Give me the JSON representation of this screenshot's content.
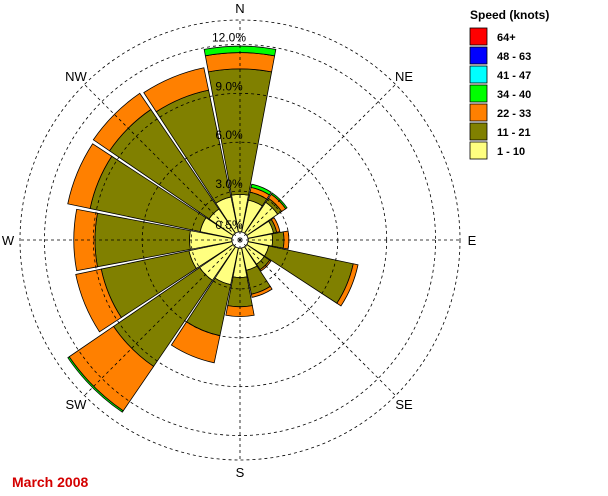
{
  "chart_data": {
    "type": "wind-rose",
    "title": "March 2008",
    "legend_title": "Speed (knots)",
    "legend_placement": "top-right",
    "directions": [
      "N",
      "NNE",
      "NE",
      "ENE",
      "E",
      "ESE",
      "SE",
      "SSE",
      "S",
      "SSW",
      "SW",
      "WSW",
      "W",
      "WNW",
      "NW",
      "NNW"
    ],
    "direction_labels": [
      "N",
      "NE",
      "E",
      "SE",
      "S",
      "SW",
      "W",
      "NW"
    ],
    "speed_bins": [
      {
        "label": "1 - 10",
        "color": "#ffff80"
      },
      {
        "label": "11 - 21",
        "color": "#808000"
      },
      {
        "label": "22 - 33",
        "color": "#ff8000"
      },
      {
        "label": "34 - 40",
        "color": "#00ff00"
      },
      {
        "label": "41 - 47",
        "color": "#00ffff"
      },
      {
        "label": "48 - 63",
        "color": "#0000ff"
      },
      {
        "label": "64+",
        "color": "#ff0000"
      }
    ],
    "ring_labels": [
      "0.5%",
      "3.0%",
      "6.0%",
      "9.0%",
      "12.0%"
    ],
    "ring_values": [
      0.5,
      3.0,
      6.0,
      9.0,
      12.0
    ],
    "rmax": 13.5,
    "calm_percent": 0.5,
    "series": [
      {
        "name": "1 - 10",
        "values": [
          2.3,
          2.0,
          2.3,
          1.6,
          1.5,
          1.3,
          1.3,
          1.4,
          1.8,
          2.3,
          2.5,
          2.7,
          2.6,
          2.0,
          1.8,
          2.2
        ]
      },
      {
        "name": "11 - 21",
        "values": [
          7.7,
          0.5,
          0.3,
          0.2,
          0.7,
          5.3,
          0.4,
          1.5,
          1.8,
          3.2,
          6.4,
          5.5,
          5.8,
          6.9,
          7.4,
          6.7
        ]
      },
      {
        "name": "22 - 33",
        "values": [
          1.0,
          0.3,
          0.3,
          0.2,
          0.3,
          0.3,
          0.1,
          0.2,
          0.6,
          1.7,
          3.3,
          1.6,
          1.3,
          1.4,
          1.2,
          1.4
        ]
      },
      {
        "name": "34 - 40",
        "values": [
          0.4,
          0.2,
          0.1,
          0.0,
          0.0,
          0.0,
          0.0,
          0.0,
          0.0,
          0.0,
          0.1,
          0.0,
          0.0,
          0.0,
          0.0,
          0.0
        ]
      },
      {
        "name": "41 - 47",
        "values": [
          0,
          0,
          0,
          0,
          0,
          0,
          0,
          0,
          0,
          0,
          0,
          0,
          0,
          0,
          0,
          0
        ]
      },
      {
        "name": "48 - 63",
        "values": [
          0,
          0,
          0,
          0,
          0,
          0,
          0,
          0,
          0,
          0,
          0,
          0,
          0,
          0,
          0,
          0
        ]
      },
      {
        "name": "64+",
        "values": [
          0,
          0,
          0,
          0,
          0,
          0,
          0,
          0,
          0,
          0,
          0,
          0,
          0,
          0,
          0,
          0
        ]
      }
    ]
  }
}
